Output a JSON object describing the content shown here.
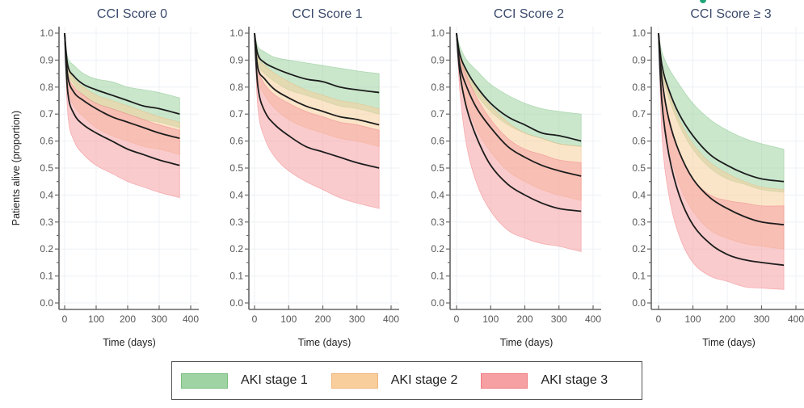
{
  "chart_data": {
    "type": "line",
    "ylabel": "Patients alive (proportion)",
    "xlabel": "Time (days)",
    "xlim": [
      0,
      400
    ],
    "ylim": [
      0,
      1.0
    ],
    "x_ticks": [
      0,
      100,
      200,
      300,
      400
    ],
    "y_ticks": [
      0.0,
      0.1,
      0.2,
      0.3,
      0.4,
      0.5,
      0.6,
      0.7,
      0.8,
      0.9,
      1.0
    ],
    "y_tick_labels": [
      "0.0",
      "0.1",
      "0.2",
      "0.3",
      "0.4",
      "0.5",
      "0.6",
      "0.7",
      "0.8",
      "0.9",
      "1.0"
    ],
    "grid": true,
    "legend_position": "bottom-center",
    "x": [
      0,
      10,
      30,
      60,
      100,
      150,
      200,
      250,
      300,
      365
    ],
    "legend": [
      {
        "name": "AKI stage 1",
        "fill": "#9fd3a3",
        "border": "#7cbf82"
      },
      {
        "name": "AKI stage 2",
        "fill": "#f8cf9c",
        "border": "#f0b57a"
      },
      {
        "name": "AKI stage 3",
        "fill": "#f6a0a3",
        "border": "#ef7c83"
      }
    ],
    "panels": [
      {
        "title": "CCI Score 0",
        "series": [
          {
            "name": "AKI stage 1",
            "mean": [
              1.0,
              0.88,
              0.84,
              0.81,
              0.79,
              0.77,
              0.75,
              0.73,
              0.72,
              0.7
            ],
            "lower": [
              1.0,
              0.86,
              0.81,
              0.77,
              0.74,
              0.72,
              0.7,
              0.68,
              0.67,
              0.65
            ],
            "upper": [
              1.0,
              0.91,
              0.88,
              0.85,
              0.83,
              0.82,
              0.8,
              0.79,
              0.78,
              0.76
            ]
          },
          {
            "name": "AKI stage 2",
            "mean": [
              1.0,
              0.84,
              0.78,
              0.75,
              0.72,
              0.69,
              0.67,
              0.65,
              0.63,
              0.61
            ],
            "lower": [
              1.0,
              0.8,
              0.73,
              0.69,
              0.65,
              0.62,
              0.6,
              0.58,
              0.57,
              0.55
            ],
            "upper": [
              1.0,
              0.88,
              0.83,
              0.8,
              0.77,
              0.75,
              0.73,
              0.71,
              0.69,
              0.67
            ]
          },
          {
            "name": "AKI stage 3",
            "mean": [
              1.0,
              0.78,
              0.7,
              0.66,
              0.63,
              0.6,
              0.57,
              0.55,
              0.53,
              0.51
            ],
            "lower": [
              1.0,
              0.7,
              0.6,
              0.55,
              0.51,
              0.48,
              0.45,
              0.43,
              0.41,
              0.39
            ],
            "upper": [
              1.0,
              0.85,
              0.8,
              0.77,
              0.74,
              0.72,
              0.7,
              0.68,
              0.66,
              0.64
            ]
          }
        ]
      },
      {
        "title": "CCI Score 1",
        "series": [
          {
            "name": "AKI stage 1",
            "mean": [
              1.0,
              0.92,
              0.89,
              0.87,
              0.85,
              0.83,
              0.82,
              0.8,
              0.79,
              0.78
            ],
            "lower": [
              1.0,
              0.89,
              0.85,
              0.82,
              0.79,
              0.77,
              0.75,
              0.73,
              0.72,
              0.7
            ],
            "upper": [
              1.0,
              0.95,
              0.93,
              0.91,
              0.9,
              0.89,
              0.88,
              0.87,
              0.86,
              0.85
            ]
          },
          {
            "name": "AKI stage 2",
            "mean": [
              1.0,
              0.87,
              0.83,
              0.79,
              0.76,
              0.73,
              0.71,
              0.69,
              0.68,
              0.66
            ],
            "lower": [
              1.0,
              0.83,
              0.77,
              0.72,
              0.68,
              0.65,
              0.63,
              0.61,
              0.6,
              0.58
            ],
            "upper": [
              1.0,
              0.91,
              0.88,
              0.85,
              0.82,
              0.79,
              0.77,
              0.75,
              0.74,
              0.72
            ]
          },
          {
            "name": "AKI stage 3",
            "mean": [
              1.0,
              0.8,
              0.71,
              0.66,
              0.62,
              0.58,
              0.56,
              0.54,
              0.52,
              0.5
            ],
            "lower": [
              1.0,
              0.72,
              0.61,
              0.54,
              0.49,
              0.45,
              0.42,
              0.39,
              0.37,
              0.35
            ],
            "upper": [
              1.0,
              0.87,
              0.81,
              0.77,
              0.74,
              0.71,
              0.69,
              0.67,
              0.66,
              0.64
            ]
          }
        ]
      },
      {
        "title": "CCI Score 2",
        "series": [
          {
            "name": "AKI stage 1",
            "mean": [
              1.0,
              0.92,
              0.86,
              0.8,
              0.74,
              0.69,
              0.66,
              0.63,
              0.62,
              0.6
            ],
            "lower": [
              1.0,
              0.9,
              0.83,
              0.77,
              0.71,
              0.66,
              0.63,
              0.61,
              0.59,
              0.58
            ],
            "upper": [
              1.0,
              0.95,
              0.9,
              0.86,
              0.81,
              0.77,
              0.74,
              0.72,
              0.71,
              0.7
            ]
          },
          {
            "name": "AKI stage 2",
            "mean": [
              1.0,
              0.88,
              0.8,
              0.72,
              0.65,
              0.58,
              0.54,
              0.51,
              0.49,
              0.47
            ],
            "lower": [
              1.0,
              0.85,
              0.74,
              0.64,
              0.56,
              0.49,
              0.45,
              0.42,
              0.4,
              0.38
            ],
            "upper": [
              1.0,
              0.91,
              0.85,
              0.79,
              0.73,
              0.67,
              0.63,
              0.61,
              0.59,
              0.58
            ]
          },
          {
            "name": "AKI stage 3",
            "mean": [
              1.0,
              0.85,
              0.72,
              0.61,
              0.51,
              0.44,
              0.4,
              0.37,
              0.35,
              0.34
            ],
            "lower": [
              1.0,
              0.78,
              0.58,
              0.44,
              0.34,
              0.27,
              0.24,
              0.22,
              0.21,
              0.19
            ],
            "upper": [
              1.0,
              0.91,
              0.84,
              0.76,
              0.68,
              0.61,
              0.57,
              0.55,
              0.53,
              0.52
            ]
          }
        ]
      },
      {
        "title": "CCI Score ≥ 3",
        "series": [
          {
            "name": "AKI stage 1",
            "mean": [
              1.0,
              0.88,
              0.79,
              0.7,
              0.62,
              0.55,
              0.51,
              0.48,
              0.46,
              0.45
            ],
            "lower": [
              1.0,
              0.86,
              0.76,
              0.66,
              0.57,
              0.5,
              0.46,
              0.44,
              0.42,
              0.41
            ],
            "upper": [
              1.0,
              0.93,
              0.87,
              0.81,
              0.74,
              0.68,
              0.64,
              0.61,
              0.59,
              0.57
            ]
          },
          {
            "name": "AKI stage 2",
            "mean": [
              1.0,
              0.83,
              0.68,
              0.56,
              0.46,
              0.39,
              0.35,
              0.32,
              0.3,
              0.29
            ],
            "lower": [
              1.0,
              0.77,
              0.58,
              0.44,
              0.34,
              0.27,
              0.24,
              0.22,
              0.21,
              0.2
            ],
            "upper": [
              1.0,
              0.88,
              0.78,
              0.68,
              0.59,
              0.52,
              0.48,
              0.45,
              0.43,
              0.42
            ]
          },
          {
            "name": "AKI stage 3",
            "mean": [
              1.0,
              0.74,
              0.55,
              0.4,
              0.29,
              0.22,
              0.18,
              0.16,
              0.15,
              0.14
            ],
            "lower": [
              1.0,
              0.62,
              0.4,
              0.25,
              0.15,
              0.1,
              0.08,
              0.06,
              0.055,
              0.05
            ],
            "upper": [
              1.0,
              0.83,
              0.69,
              0.56,
              0.46,
              0.4,
              0.38,
              0.37,
              0.36,
              0.36
            ]
          }
        ]
      }
    ]
  }
}
